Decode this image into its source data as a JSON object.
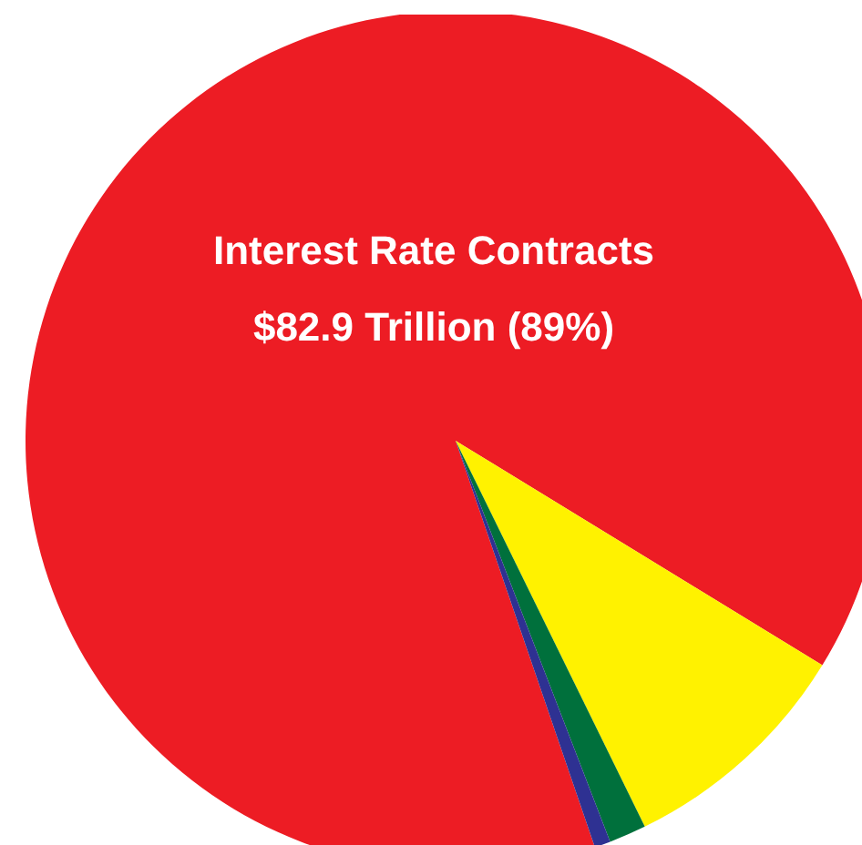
{
  "chart_data": {
    "type": "pie",
    "categories": [
      "Interest Rate Contracts",
      null,
      null,
      null
    ],
    "values": [
      89,
      9,
      1.4,
      0.6
    ],
    "colors": [
      "#ed1c24",
      "#fff200",
      "#00703c",
      "#2e3192"
    ],
    "value_labels": [
      "$82.9 Trillion (89%)",
      null,
      null,
      null
    ],
    "legend": false
  }
}
